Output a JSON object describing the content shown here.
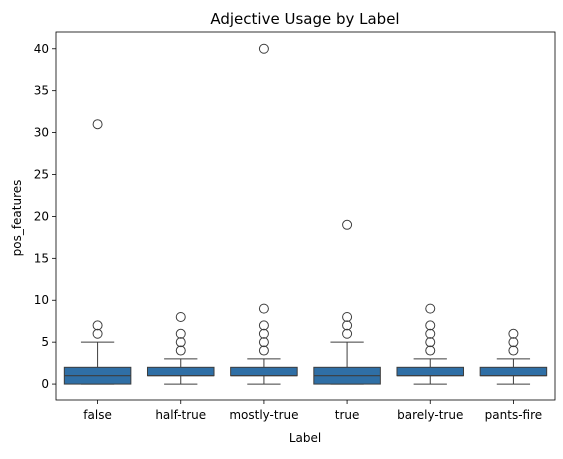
{
  "chart_data": {
    "type": "box",
    "title": "Adjective Usage by Label",
    "xlabel": "Label",
    "ylabel": "pos_features",
    "ylim": [
      -1.9,
      42
    ],
    "yticks": [
      0,
      5,
      10,
      15,
      20,
      25,
      30,
      35,
      40
    ],
    "ytick_labels": [
      "0",
      "5",
      "10",
      "15",
      "20",
      "25",
      "30",
      "35",
      "40"
    ],
    "box_color": "#2f6fa6",
    "line_color": "#3d3d3d",
    "categories": [
      "false",
      "half-true",
      "mostly-true",
      "true",
      "barely-true",
      "pants-fire"
    ],
    "boxes": [
      {
        "label": "false",
        "whisker_low": 0,
        "q1": 0,
        "median": 1,
        "q3": 2,
        "whisker_high": 5,
        "outliers": [
          6,
          7,
          31
        ]
      },
      {
        "label": "half-true",
        "whisker_low": 0,
        "q1": 1,
        "median": 1,
        "q3": 2,
        "whisker_high": 3,
        "outliers": [
          4,
          5,
          6,
          8
        ]
      },
      {
        "label": "mostly-true",
        "whisker_low": 0,
        "q1": 1,
        "median": 1,
        "q3": 2,
        "whisker_high": 3,
        "outliers": [
          4,
          5,
          6,
          7,
          9,
          40
        ]
      },
      {
        "label": "true",
        "whisker_low": 0,
        "q1": 0,
        "median": 1,
        "q3": 2,
        "whisker_high": 5,
        "outliers": [
          6,
          7,
          8,
          19
        ]
      },
      {
        "label": "barely-true",
        "whisker_low": 0,
        "q1": 1,
        "median": 1,
        "q3": 2,
        "whisker_high": 3,
        "outliers": [
          4,
          5,
          6,
          7,
          9
        ]
      },
      {
        "label": "pants-fire",
        "whisker_low": 0,
        "q1": 1,
        "median": 1,
        "q3": 2,
        "whisker_high": 3,
        "outliers": [
          4,
          5,
          6
        ]
      }
    ]
  }
}
